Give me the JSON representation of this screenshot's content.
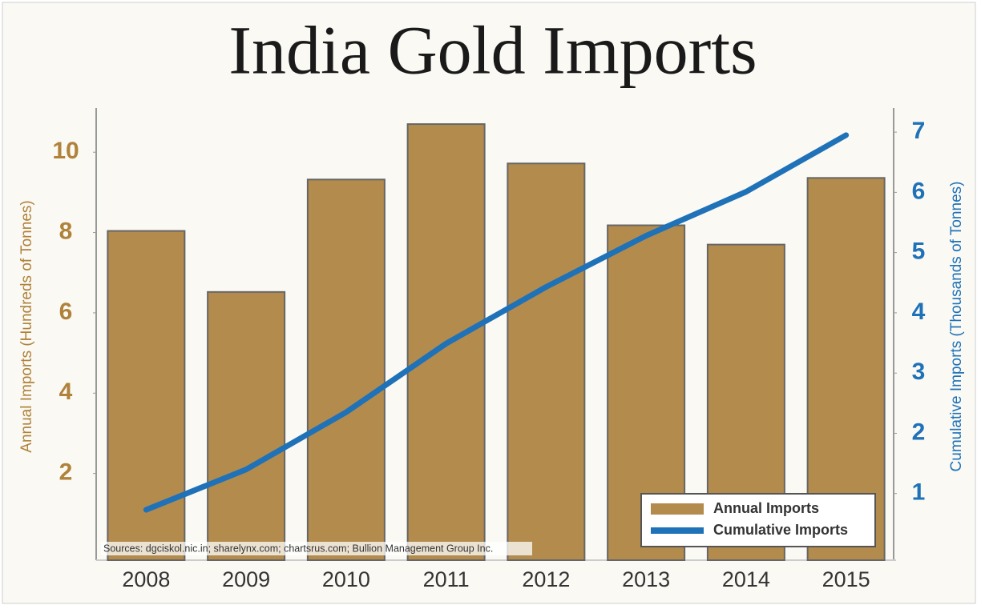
{
  "chart_data": {
    "type": "combo",
    "title": "India Gold Imports",
    "y_label": "Annual Imports (Hundreds of Tonnes)",
    "y2_label": "Cumulative Imports (Thousands of Tonnes)",
    "source": "Sources: dgciskol.nic.in; sharelynx.com; chartsrus.com; Bullion Management Group Inc.",
    "categories": [
      "2008",
      "2009",
      "2010",
      "2011",
      "2012",
      "2013",
      "2014",
      "2015"
    ],
    "series": [
      {
        "name": "Annual Imports",
        "type": "bar",
        "color": "#b38b4d",
        "values": [
          8.04,
          6.52,
          9.32,
          10.7,
          9.72,
          8.18,
          7.7,
          9.36
        ]
      },
      {
        "name": "Cumulative Imports",
        "type": "line",
        "axis": "y2",
        "color": "#1f72b8",
        "values": [
          0.73,
          1.4,
          2.35,
          3.49,
          4.43,
          5.28,
          6.01,
          6.95
        ]
      }
    ],
    "ylim": [
      0,
      11.1
    ],
    "yticks": [
      2,
      4,
      6,
      8,
      10
    ],
    "y2lim": [
      0,
      7.4
    ],
    "y2ticks": [
      1,
      2,
      3,
      4,
      5,
      6,
      7
    ],
    "legend": "lower right"
  }
}
